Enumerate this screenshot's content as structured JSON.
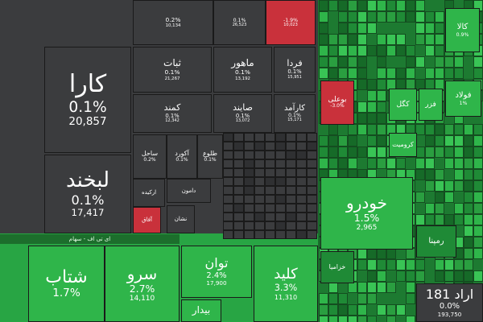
{
  "sections": [
    "ای تی اف - سهام"
  ],
  "tiles": [
    {
      "change": "0.2%",
      "volume": "10,134"
    },
    {
      "change": "0.1%",
      "volume": "26,523"
    },
    {
      "change": "-1.9%",
      "volume": "10,023"
    },
    {
      "name": "کارا",
      "change": "0.1%",
      "volume": "20,857"
    },
    {
      "name": "لبخند",
      "change": "0.1%",
      "volume": "17,417"
    },
    {
      "name": "ثبات",
      "change": "0.1%",
      "volume": "21,267"
    },
    {
      "name": "ماهور",
      "change": "0.1%",
      "volume": "13,192"
    },
    {
      "name": "فردا",
      "change": "0.1%",
      "volume": "15,951"
    },
    {
      "name": "کمند",
      "change": "0.1%",
      "volume": "12,342"
    },
    {
      "name": "صایند",
      "change": "0.1%",
      "volume": "13,072"
    },
    {
      "name": "کارآمد",
      "change": "0.1%",
      "volume": "15,171"
    },
    {
      "name": "ساحل",
      "change": "0.2%"
    },
    {
      "name": "آکورد",
      "change": "0.1%"
    },
    {
      "name": "طلوع",
      "change": "0.1%"
    },
    {
      "name": "ارکیده"
    },
    {
      "name": "آفاق"
    },
    {
      "name": "دامون"
    },
    {
      "name": "نشان"
    },
    {
      "name": "شتاب",
      "change": "1.7%"
    },
    {
      "name": "سرو",
      "change": "2.7%",
      "volume": "14,110"
    },
    {
      "name": "توان",
      "change": "2.4%",
      "volume": "17,900"
    },
    {
      "name": "کلید",
      "change": "3.3%",
      "volume": "11,310"
    },
    {
      "name": "بیدار"
    },
    {
      "name": "کالا",
      "change": "0.9%"
    },
    {
      "name": "فولاد",
      "change": "1%"
    },
    {
      "name": "بوعلی",
      "change": "-3.0%"
    },
    {
      "name": "کگل"
    },
    {
      "name": "فزر"
    },
    {
      "name": "کرومیت"
    },
    {
      "name": "خودرو",
      "change": "1.5%",
      "volume": "2,965"
    },
    {
      "name": "خزامیا"
    },
    {
      "name": "رمپنا"
    },
    {
      "name": "اراد 181",
      "change": "0.0%",
      "volume": "193,750"
    }
  ]
}
